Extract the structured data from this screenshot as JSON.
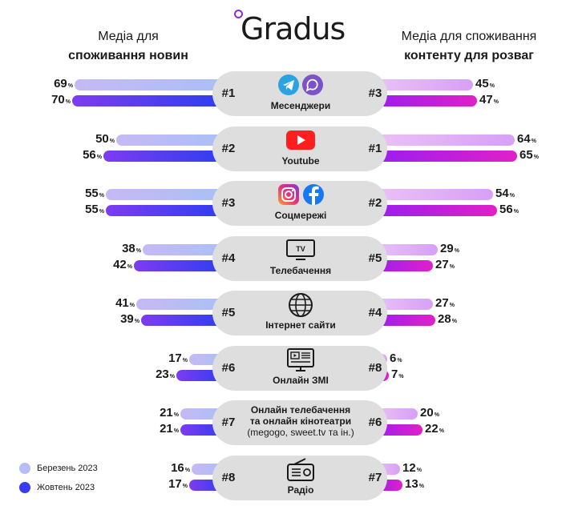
{
  "logo": {
    "text": "Gradus"
  },
  "headers": {
    "left_line1": "Медіа для",
    "left_line2": "споживання новин",
    "right_line1": "Медіа для споживання",
    "right_line2": "контенту для розваг"
  },
  "legend": {
    "march": "Березень 2023",
    "october": "Жовтень 2023",
    "march_color": "#b6bdf7",
    "october_color": "#3a3bf0"
  },
  "percent_sign": "%",
  "chart_data": {
    "type": "bar",
    "orientation": "horizontal-butterfly",
    "series": [
      {
        "name": "Березень 2023"
      },
      {
        "name": "Жовтень 2023"
      }
    ],
    "categories": [
      {
        "label": "Месенджери",
        "icon": "telegram-viber-icon",
        "news_rank": "#1",
        "ent_rank": "#3",
        "news": [
          69,
          70
        ],
        "ent": [
          45,
          47
        ]
      },
      {
        "label": "Youtube",
        "icon": "youtube-icon",
        "news_rank": "#2",
        "ent_rank": "#1",
        "news": [
          50,
          56
        ],
        "ent": [
          64,
          65
        ]
      },
      {
        "label": "Соцмережі",
        "icon": "instagram-facebook-icon",
        "news_rank": "#3",
        "ent_rank": "#2",
        "news": [
          55,
          55
        ],
        "ent": [
          54,
          56
        ]
      },
      {
        "label": "Телебачення",
        "icon": "tv-icon",
        "news_rank": "#4",
        "ent_rank": "#5",
        "news": [
          38,
          42
        ],
        "ent": [
          29,
          27
        ]
      },
      {
        "label": "Інтернет сайти",
        "icon": "globe-icon",
        "news_rank": "#5",
        "ent_rank": "#4",
        "news": [
          41,
          39
        ],
        "ent": [
          27,
          28
        ]
      },
      {
        "label": "Онлайн ЗМІ",
        "icon": "online-media-icon",
        "news_rank": "#6",
        "ent_rank": "#8",
        "news": [
          17,
          23
        ],
        "ent": [
          6,
          7
        ]
      },
      {
        "label_lines": [
          "Онлайн телебачення",
          "та онлайн кінотеатри",
          "(megogo, sweet.tv та ін.)"
        ],
        "icon": "",
        "news_rank": "#7",
        "ent_rank": "#6",
        "news": [
          21,
          21
        ],
        "ent": [
          20,
          22
        ]
      },
      {
        "label": "Радіо",
        "icon": "radio-icon",
        "news_rank": "#8",
        "ent_rank": "#7",
        "news": [
          16,
          17
        ],
        "ent": [
          12,
          13
        ]
      }
    ],
    "title": "",
    "xlabel": "",
    "ylabel": ""
  }
}
